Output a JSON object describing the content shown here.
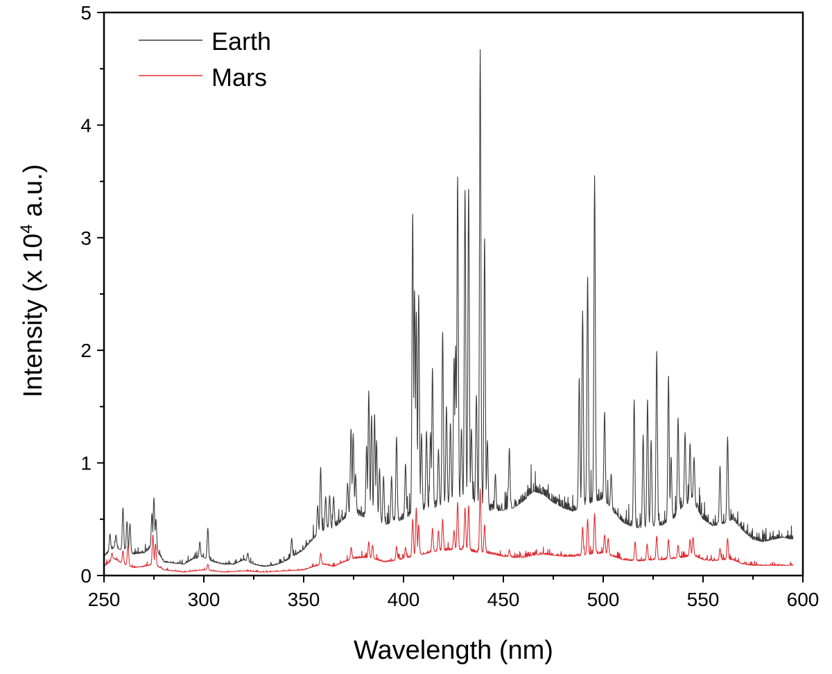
{
  "chart_data": {
    "type": "line",
    "xlabel": "Wavelength (nm)",
    "ylabel_prefix": "Intensity (x 10",
    "ylabel_superscript": "4",
    "ylabel_suffix": " a.u.)",
    "xlim": [
      250,
      600
    ],
    "ylim": [
      0,
      5
    ],
    "xticks": [
      "250",
      "300",
      "350",
      "400",
      "450",
      "500",
      "550",
      "600"
    ],
    "yticks": [
      "0",
      "1",
      "2",
      "3",
      "4",
      "5"
    ],
    "grid": false,
    "legend_position": "top-left",
    "series": [
      {
        "name": "Earth",
        "color": "#3a3a3a",
        "baseline": [
          [
            250,
            0.17
          ],
          [
            255,
            0.25
          ],
          [
            260,
            0.22
          ],
          [
            265,
            0.19
          ],
          [
            270,
            0.2
          ],
          [
            275,
            0.27
          ],
          [
            280,
            0.12
          ],
          [
            285,
            0.11
          ],
          [
            290,
            0.1
          ],
          [
            295,
            0.15
          ],
          [
            300,
            0.16
          ],
          [
            305,
            0.12
          ],
          [
            310,
            0.1
          ],
          [
            315,
            0.1
          ],
          [
            320,
            0.14
          ],
          [
            325,
            0.1
          ],
          [
            330,
            0.08
          ],
          [
            335,
            0.09
          ],
          [
            340,
            0.12
          ],
          [
            345,
            0.17
          ],
          [
            350,
            0.23
          ],
          [
            355,
            0.33
          ],
          [
            360,
            0.4
          ],
          [
            365,
            0.42
          ],
          [
            370,
            0.5
          ],
          [
            375,
            0.55
          ],
          [
            380,
            0.52
          ],
          [
            385,
            0.5
          ],
          [
            390,
            0.45
          ],
          [
            395,
            0.47
          ],
          [
            400,
            0.5
          ],
          [
            405,
            0.55
          ],
          [
            410,
            0.58
          ],
          [
            415,
            0.6
          ],
          [
            420,
            0.62
          ],
          [
            425,
            0.65
          ],
          [
            430,
            0.65
          ],
          [
            435,
            0.63
          ],
          [
            440,
            0.6
          ],
          [
            445,
            0.57
          ],
          [
            450,
            0.58
          ],
          [
            455,
            0.6
          ],
          [
            460,
            0.66
          ],
          [
            465,
            0.75
          ],
          [
            470,
            0.72
          ],
          [
            475,
            0.65
          ],
          [
            480,
            0.6
          ],
          [
            485,
            0.57
          ],
          [
            490,
            0.62
          ],
          [
            495,
            0.65
          ],
          [
            500,
            0.68
          ],
          [
            505,
            0.57
          ],
          [
            510,
            0.47
          ],
          [
            515,
            0.43
          ],
          [
            520,
            0.42
          ],
          [
            525,
            0.44
          ],
          [
            530,
            0.45
          ],
          [
            535,
            0.5
          ],
          [
            540,
            0.62
          ],
          [
            545,
            0.66
          ],
          [
            550,
            0.5
          ],
          [
            555,
            0.44
          ],
          [
            560,
            0.46
          ],
          [
            565,
            0.5
          ],
          [
            570,
            0.4
          ],
          [
            575,
            0.32
          ],
          [
            580,
            0.3
          ],
          [
            585,
            0.32
          ],
          [
            590,
            0.34
          ],
          [
            595,
            0.32
          ]
        ],
        "peaks": [
          [
            253,
            0.37
          ],
          [
            256,
            0.36
          ],
          [
            259.5,
            0.6
          ],
          [
            261.5,
            0.48
          ],
          [
            263,
            0.46
          ],
          [
            274,
            0.55
          ],
          [
            275,
            0.69
          ],
          [
            276,
            0.5
          ],
          [
            298,
            0.3
          ],
          [
            302,
            0.42
          ],
          [
            322,
            0.2
          ],
          [
            344,
            0.33
          ],
          [
            357,
            0.62
          ],
          [
            358.5,
            0.96
          ],
          [
            361,
            0.7
          ],
          [
            363,
            0.71
          ],
          [
            365,
            0.7
          ],
          [
            372,
            0.82
          ],
          [
            373.7,
            1.3
          ],
          [
            374.8,
            1.26
          ],
          [
            376,
            0.9
          ],
          [
            381.5,
            1.15
          ],
          [
            382.6,
            1.64
          ],
          [
            384,
            1.42
          ],
          [
            385.5,
            1.43
          ],
          [
            386.5,
            1.2
          ],
          [
            388,
            0.95
          ],
          [
            390,
            0.88
          ],
          [
            394,
            0.88
          ],
          [
            396.5,
            1.23
          ],
          [
            401,
            0.99
          ],
          [
            404.6,
            3.21
          ],
          [
            405.5,
            2.53
          ],
          [
            406.4,
            2.34
          ],
          [
            407.6,
            2.49
          ],
          [
            409,
            1.26
          ],
          [
            411.5,
            1.28
          ],
          [
            413.5,
            1.27
          ],
          [
            414.5,
            1.84
          ],
          [
            417.5,
            1.12
          ],
          [
            419.6,
            2.16
          ],
          [
            421.5,
            1.5
          ],
          [
            423.5,
            1.35
          ],
          [
            425.3,
            1.93
          ],
          [
            426.1,
            2.04
          ],
          [
            427.1,
            3.54
          ],
          [
            429,
            1.3
          ],
          [
            430.8,
            3.42
          ],
          [
            432.6,
            3.43
          ],
          [
            434,
            1.3
          ],
          [
            436.5,
            1.6
          ],
          [
            438.4,
            4.67
          ],
          [
            440.6,
            2.99
          ],
          [
            442,
            1.2
          ],
          [
            446,
            0.9
          ],
          [
            453,
            1.13
          ],
          [
            488,
            1.75
          ],
          [
            489.7,
            2.35
          ],
          [
            492.2,
            2.65
          ],
          [
            495.7,
            3.55
          ],
          [
            500.7,
            1.45
          ],
          [
            504,
            0.9
          ],
          [
            515.5,
            1.56
          ],
          [
            520,
            1.25
          ],
          [
            522.2,
            1.56
          ],
          [
            524,
            1.2
          ],
          [
            526.8,
            1.99
          ],
          [
            532.7,
            1.77
          ],
          [
            534,
            1.05
          ],
          [
            537.5,
            1.4
          ],
          [
            541,
            1.27
          ],
          [
            543.5,
            1.17
          ],
          [
            545.5,
            1.05
          ],
          [
            558.5,
            0.97
          ],
          [
            562.3,
            1.23
          ]
        ]
      },
      {
        "name": "Mars",
        "color": "#e0292e",
        "baseline": [
          [
            250,
            0.08
          ],
          [
            255,
            0.15
          ],
          [
            260,
            0.1
          ],
          [
            265,
            0.07
          ],
          [
            270,
            0.08
          ],
          [
            275,
            0.1
          ],
          [
            280,
            0.05
          ],
          [
            290,
            0.03
          ],
          [
            300,
            0.05
          ],
          [
            310,
            0.03
          ],
          [
            320,
            0.04
          ],
          [
            330,
            0.03
          ],
          [
            340,
            0.04
          ],
          [
            350,
            0.05
          ],
          [
            355,
            0.08
          ],
          [
            360,
            0.1
          ],
          [
            365,
            0.08
          ],
          [
            370,
            0.12
          ],
          [
            375,
            0.15
          ],
          [
            380,
            0.16
          ],
          [
            385,
            0.15
          ],
          [
            390,
            0.12
          ],
          [
            395,
            0.13
          ],
          [
            400,
            0.15
          ],
          [
            405,
            0.17
          ],
          [
            410,
            0.19
          ],
          [
            415,
            0.21
          ],
          [
            420,
            0.22
          ],
          [
            425,
            0.23
          ],
          [
            430,
            0.23
          ],
          [
            435,
            0.21
          ],
          [
            440,
            0.2
          ],
          [
            445,
            0.19
          ],
          [
            450,
            0.17
          ],
          [
            455,
            0.16
          ],
          [
            460,
            0.16
          ],
          [
            465,
            0.18
          ],
          [
            470,
            0.19
          ],
          [
            475,
            0.18
          ],
          [
            480,
            0.17
          ],
          [
            485,
            0.17
          ],
          [
            490,
            0.18
          ],
          [
            495,
            0.19
          ],
          [
            500,
            0.2
          ],
          [
            505,
            0.17
          ],
          [
            510,
            0.14
          ],
          [
            515,
            0.13
          ],
          [
            520,
            0.13
          ],
          [
            525,
            0.14
          ],
          [
            530,
            0.14
          ],
          [
            535,
            0.15
          ],
          [
            540,
            0.16
          ],
          [
            545,
            0.18
          ],
          [
            550,
            0.14
          ],
          [
            555,
            0.13
          ],
          [
            560,
            0.14
          ],
          [
            565,
            0.14
          ],
          [
            570,
            0.1
          ],
          [
            575,
            0.09
          ],
          [
            580,
            0.09
          ],
          [
            585,
            0.09
          ],
          [
            590,
            0.09
          ],
          [
            595,
            0.09
          ]
        ],
        "peaks": [
          [
            254,
            0.2
          ],
          [
            259.5,
            0.22
          ],
          [
            262,
            0.27
          ],
          [
            274.5,
            0.36
          ],
          [
            275.8,
            0.28
          ],
          [
            302,
            0.1
          ],
          [
            358.5,
            0.2
          ],
          [
            373.8,
            0.25
          ],
          [
            382.6,
            0.3
          ],
          [
            384.5,
            0.27
          ],
          [
            396.5,
            0.26
          ],
          [
            401,
            0.25
          ],
          [
            404.6,
            0.5
          ],
          [
            406.4,
            0.6
          ],
          [
            407.6,
            0.45
          ],
          [
            414.5,
            0.42
          ],
          [
            417.5,
            0.4
          ],
          [
            419.6,
            0.5
          ],
          [
            425.3,
            0.4
          ],
          [
            427.1,
            0.65
          ],
          [
            430.8,
            0.6
          ],
          [
            432.6,
            0.62
          ],
          [
            438.4,
            0.77
          ],
          [
            440.6,
            0.45
          ],
          [
            453,
            0.23
          ],
          [
            489.7,
            0.43
          ],
          [
            492.2,
            0.5
          ],
          [
            495.7,
            0.55
          ],
          [
            500.7,
            0.36
          ],
          [
            502.5,
            0.33
          ],
          [
            516,
            0.3
          ],
          [
            522,
            0.28
          ],
          [
            526.8,
            0.35
          ],
          [
            532.7,
            0.32
          ],
          [
            537.5,
            0.27
          ],
          [
            543.5,
            0.32
          ],
          [
            545,
            0.34
          ],
          [
            558.5,
            0.24
          ],
          [
            562.3,
            0.33
          ]
        ]
      }
    ]
  }
}
